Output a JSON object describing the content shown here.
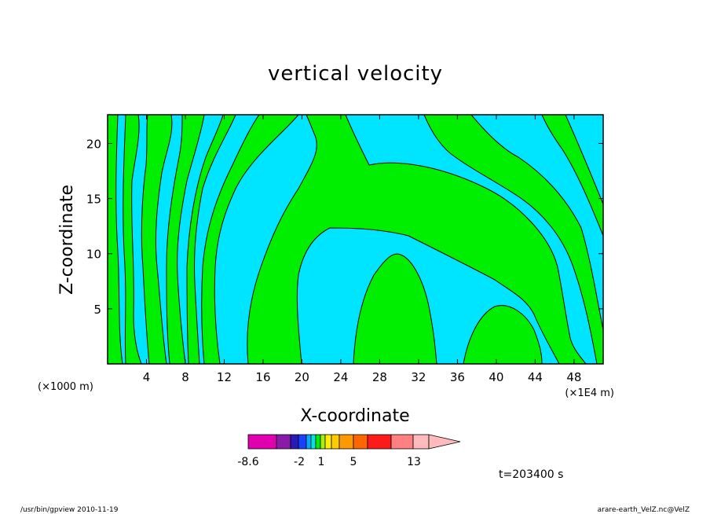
{
  "chart_data": {
    "type": "heatmap",
    "title": "vertical velocity",
    "xlabel": "X-coordinate",
    "ylabel": "Z-coordinate",
    "x_units": "(×1E4 m)",
    "y_units": "(×1000 m)",
    "xlim": [
      0,
      51
    ],
    "ylim": [
      0,
      22.6
    ],
    "x_ticks": [
      "4",
      "8",
      "12",
      "16",
      "20",
      "24",
      "28",
      "32",
      "36",
      "40",
      "44",
      "48"
    ],
    "x_tick_values": [
      4,
      8,
      12,
      16,
      20,
      24,
      28,
      32,
      36,
      40,
      44,
      48
    ],
    "y_ticks": [
      "5",
      "10",
      "15",
      "20"
    ],
    "y_tick_values": [
      5,
      10,
      15,
      20
    ],
    "fill_colors": {
      "negative": "#00e5ff",
      "positive": "#00ee00"
    },
    "colorbar": {
      "labels": [
        "-8.6",
        "-2",
        "1",
        "5",
        "13"
      ],
      "label_positions": [
        0,
        6,
        8,
        11,
        16
      ],
      "colors": [
        "#e000b0",
        "#8a1aa8",
        "#2a1ab8",
        "#1a40ff",
        "#00aaff",
        "#00e5e0",
        "#00ee00",
        "#aaee00",
        "#ffee00",
        "#ffcc00",
        "#ff9900",
        "#ff6600",
        "#ff1a1a",
        "#ff8080",
        "#ffbbbb"
      ],
      "widths": [
        36,
        18,
        10,
        10,
        6,
        6,
        6,
        6,
        8,
        10,
        18,
        18,
        30,
        28,
        60
      ],
      "arrow": true
    },
    "grid": false
  },
  "annotation_time": "t=203400 s",
  "footer_left": "/usr/bin/gpview  2010-11-19",
  "footer_right": "arare-earth_VelZ.nc@VelZ"
}
